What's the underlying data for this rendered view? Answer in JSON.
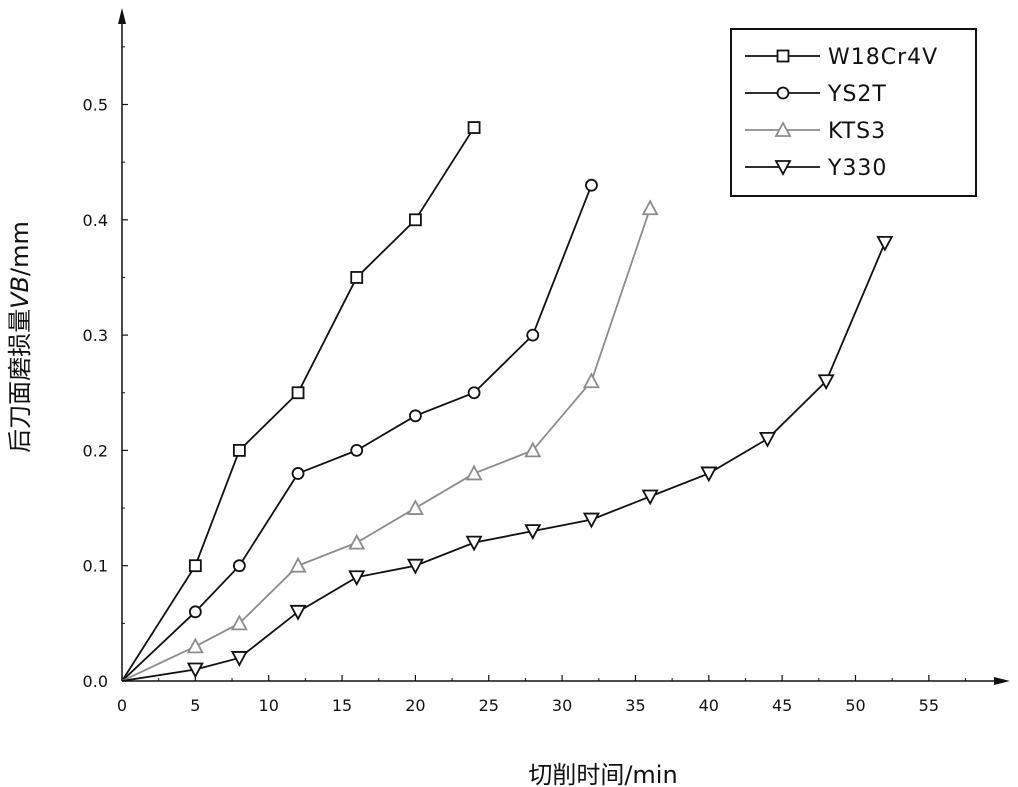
{
  "chart_data": {
    "type": "line",
    "title": "",
    "xlabel": "切削时间/min",
    "ylabel_parts": [
      "后刀面磨损量",
      "VB",
      "/mm"
    ],
    "xlim": [
      0,
      60
    ],
    "ylim": [
      0,
      0.57
    ],
    "x_ticks": [
      0,
      5,
      10,
      15,
      20,
      25,
      30,
      35,
      40,
      45,
      50,
      55
    ],
    "x_tick_labels": [
      "0",
      "5",
      "10",
      "15",
      "20",
      "25",
      "30",
      "35",
      "40",
      "45",
      "50",
      "55"
    ],
    "y_ticks": [
      0,
      0.1,
      0.2,
      0.3,
      0.4,
      0.5
    ],
    "y_tick_labels": [
      "0.0",
      "0.1",
      "0.2",
      "0.3",
      "0.4",
      "0.5"
    ],
    "grid": false,
    "legend_position": "top-right",
    "series": [
      {
        "name": "W18Cr4V",
        "marker": "square",
        "color": "#111111",
        "x": [
          0,
          5,
          8,
          12,
          16,
          20,
          24
        ],
        "y": [
          0,
          0.1,
          0.2,
          0.25,
          0.35,
          0.4,
          0.48
        ]
      },
      {
        "name": "YS2T",
        "marker": "circle",
        "color": "#111111",
        "x": [
          0,
          5,
          8,
          12,
          16,
          20,
          24,
          28,
          32
        ],
        "y": [
          0,
          0.06,
          0.1,
          0.18,
          0.2,
          0.23,
          0.25,
          0.3,
          0.43
        ]
      },
      {
        "name": "KTS3",
        "marker": "triangle-up",
        "color": "#8c8c8c",
        "x": [
          0,
          5,
          8,
          12,
          16,
          20,
          24,
          28,
          32,
          36
        ],
        "y": [
          0,
          0.03,
          0.05,
          0.1,
          0.12,
          0.15,
          0.18,
          0.2,
          0.26,
          0.41
        ]
      },
      {
        "name": "Y330",
        "marker": "triangle-down",
        "color": "#111111",
        "x": [
          0,
          5,
          8,
          12,
          16,
          20,
          24,
          28,
          32,
          36,
          40,
          44,
          48,
          52
        ],
        "y": [
          0,
          0.01,
          0.02,
          0.06,
          0.09,
          0.1,
          0.12,
          0.13,
          0.14,
          0.16,
          0.18,
          0.21,
          0.26,
          0.38
        ]
      }
    ]
  }
}
